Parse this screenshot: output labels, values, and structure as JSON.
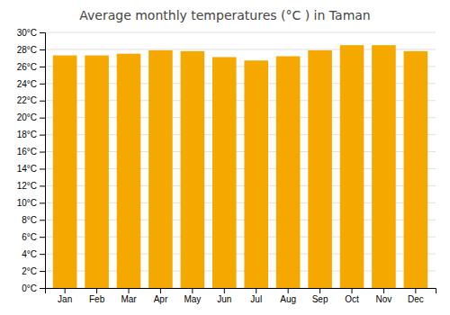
{
  "chart_data": {
    "type": "bar",
    "title": "Average monthly temperatures (°C ) in Taman",
    "categories": [
      "Jan",
      "Feb",
      "Mar",
      "Apr",
      "May",
      "Jun",
      "Jul",
      "Aug",
      "Sep",
      "Oct",
      "Nov",
      "Dec"
    ],
    "values": [
      27.3,
      27.3,
      27.5,
      27.9,
      27.8,
      27.1,
      26.7,
      27.2,
      27.9,
      28.5,
      28.5,
      27.8
    ],
    "color": "#F5A800",
    "ylim": [
      0,
      30
    ],
    "yticks": [
      {
        "value": 0,
        "label": "0°C"
      },
      {
        "value": 2,
        "label": "2°C"
      },
      {
        "value": 4,
        "label": "4°C"
      },
      {
        "value": 6,
        "label": "6°C"
      },
      {
        "value": 8,
        "label": "8°C"
      },
      {
        "value": 10,
        "label": "10°C"
      },
      {
        "value": 12,
        "label": "12°C"
      },
      {
        "value": 14,
        "label": "14°C"
      },
      {
        "value": 16,
        "label": "16°C"
      },
      {
        "value": 18,
        "label": "18°C"
      },
      {
        "value": 20,
        "label": "20°C"
      },
      {
        "value": 22,
        "label": "22°C"
      },
      {
        "value": 24,
        "label": "24°C"
      },
      {
        "value": 26,
        "label": "26°C"
      },
      {
        "value": 28,
        "label": "28°C"
      },
      {
        "value": 30,
        "label": "30°C"
      }
    ],
    "grid": true
  }
}
